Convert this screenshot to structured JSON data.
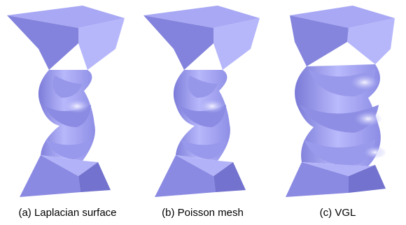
{
  "figure": {
    "surface_color": "#a6a6f2",
    "panels": [
      {
        "caption": "(a) Laplacian surface",
        "shape": "thin-twist"
      },
      {
        "caption": "(b) Poisson mesh",
        "shape": "thin-twist"
      },
      {
        "caption": "(c) VGL",
        "shape": "thick-twist"
      }
    ]
  }
}
